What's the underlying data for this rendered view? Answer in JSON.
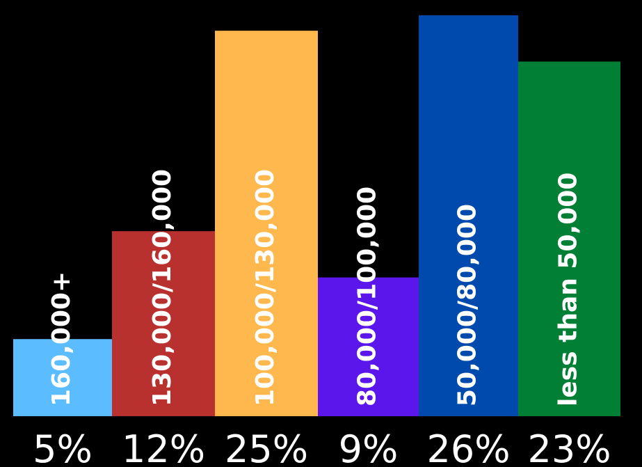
{
  "chart_data": {
    "type": "bar",
    "categories": [
      "160,000+",
      "130,000/160,000",
      "100,000/130,000",
      "80,000/100,000",
      "50,000/80,000",
      "less than 50,000"
    ],
    "values": [
      5,
      12,
      25,
      9,
      26,
      23
    ],
    "value_labels": [
      "5%",
      "12%",
      "25%",
      "9%",
      "26%",
      "23%"
    ],
    "colors": [
      "#5bbcff",
      "#b8312f",
      "#ffb84d",
      "#5b16ec",
      "#004aad",
      "#007f35"
    ],
    "title": "",
    "xlabel": "",
    "ylabel": "",
    "background": "#000000",
    "grid": false,
    "legend": "none"
  }
}
